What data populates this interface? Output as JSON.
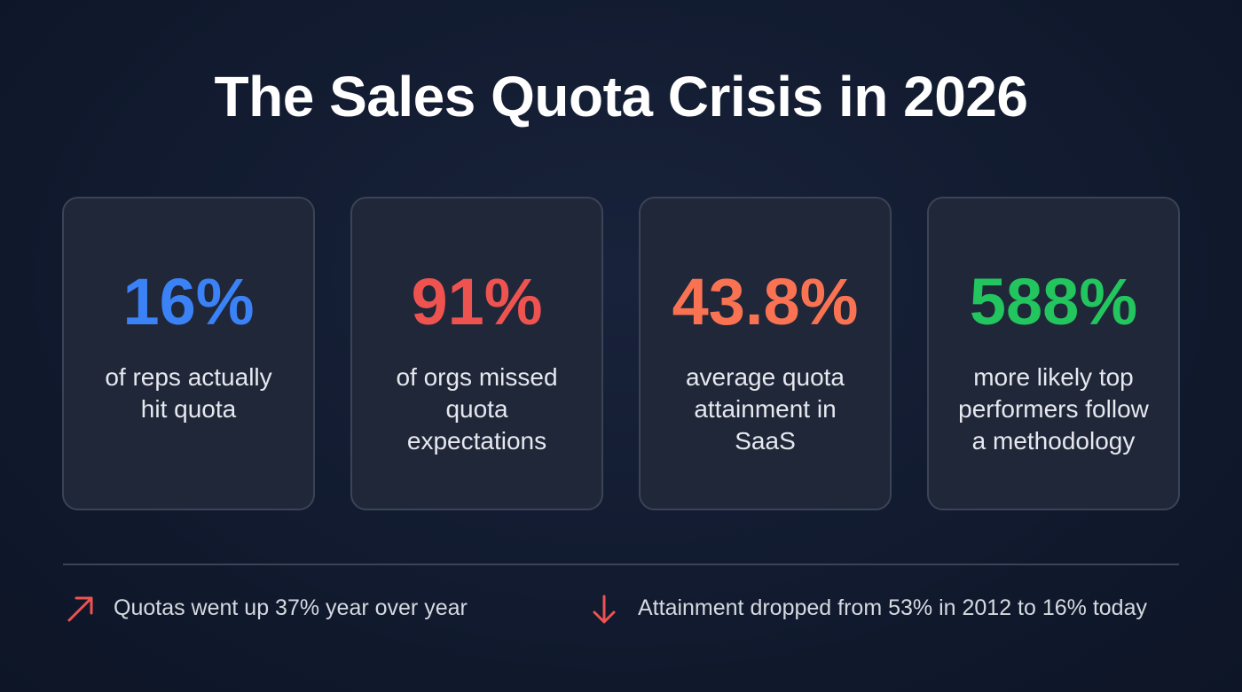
{
  "header": {
    "title": "The Sales Quota Crisis in 2026"
  },
  "cards": [
    {
      "stat": "16%",
      "color": "#3b82f6",
      "lines": [
        "of reps actually",
        "hit quota"
      ]
    },
    {
      "stat": "91%",
      "color": "#ef5350",
      "lines": [
        "of orgs missed",
        "quota",
        "expectations"
      ]
    },
    {
      "stat": "43.8%",
      "color": "#f97352",
      "lines": [
        "average quota",
        "attainment in",
        "SaaS"
      ]
    },
    {
      "stat": "588%",
      "color": "#22c55e",
      "lines": [
        "more likely top",
        "performers follow",
        "a methodology"
      ]
    }
  ],
  "footer": {
    "notes": [
      "Quotas went up 37% year over year",
      "Attainment dropped from 53% in 2012 to 16% today"
    ]
  }
}
